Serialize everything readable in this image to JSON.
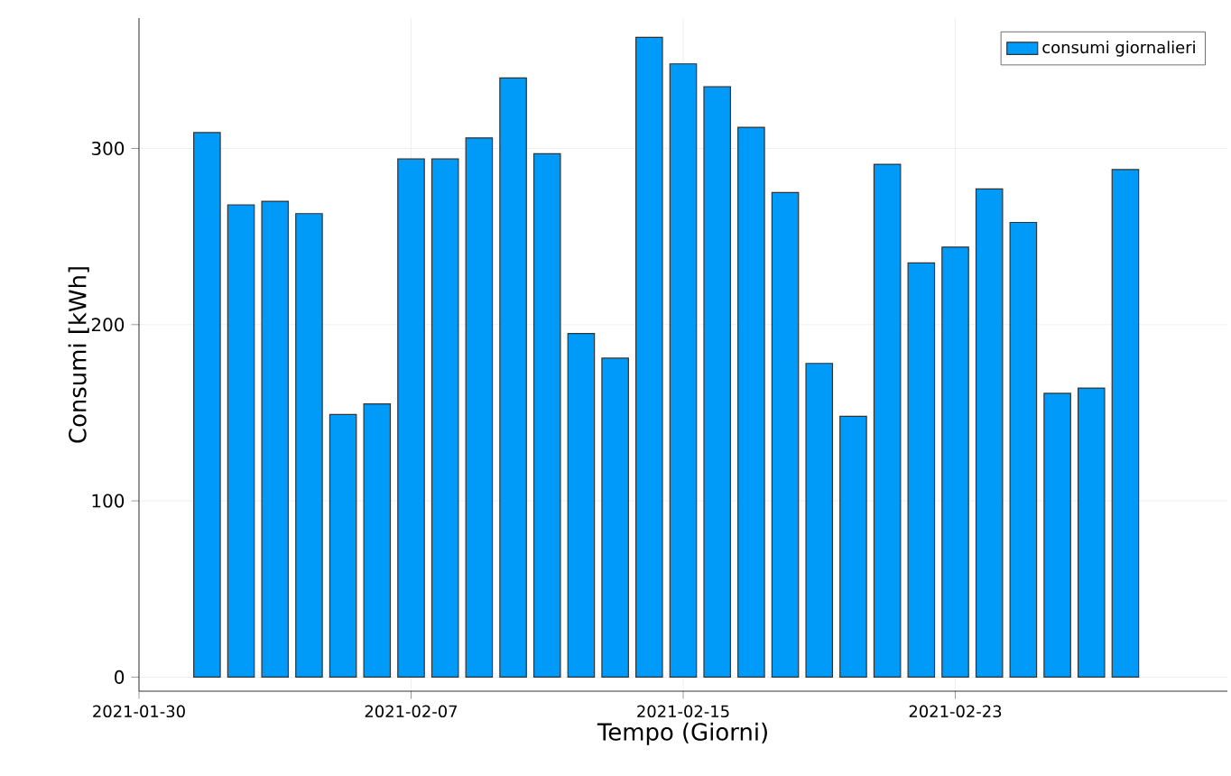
{
  "chart_data": {
    "type": "bar",
    "xlabel": "Tempo (Giorni)",
    "ylabel": "Consumi [kWh]",
    "x": [
      "2021-02-01",
      "2021-02-02",
      "2021-02-03",
      "2021-02-04",
      "2021-02-05",
      "2021-02-06",
      "2021-02-07",
      "2021-02-08",
      "2021-02-09",
      "2021-02-10",
      "2021-02-11",
      "2021-02-12",
      "2021-02-13",
      "2021-02-14",
      "2021-02-15",
      "2021-02-16",
      "2021-02-17",
      "2021-02-18",
      "2021-02-19",
      "2021-02-20",
      "2021-02-21",
      "2021-02-22",
      "2021-02-23",
      "2021-02-24",
      "2021-02-25",
      "2021-02-26",
      "2021-02-27",
      "2021-02-28"
    ],
    "series": [
      {
        "name": "consumi giornalieri",
        "color": "#009af9",
        "values": [
          309,
          268,
          270,
          263,
          149,
          155,
          294,
          294,
          306,
          340,
          297,
          195,
          181,
          363,
          348,
          335,
          312,
          275,
          178,
          148,
          291,
          235,
          244,
          277,
          258,
          161,
          164,
          288
        ]
      }
    ],
    "xlim": [
      "2021-01-30",
      "2021-03-03"
    ],
    "ylim": [
      -8,
      374
    ],
    "xticks": [
      "2021-01-30",
      "2021-02-07",
      "2021-02-15",
      "2021-02-23"
    ],
    "yticks": [
      0,
      100,
      200,
      300
    ],
    "grid": true,
    "legend": "top right"
  }
}
